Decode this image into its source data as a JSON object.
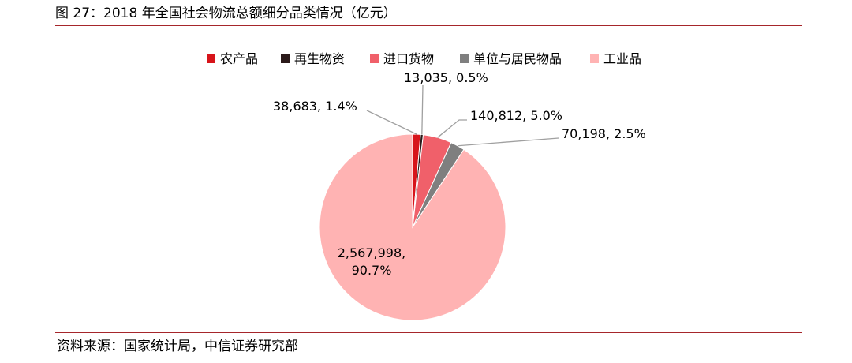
{
  "figure": {
    "title": "图 27：2018 年全国社会物流总额细分品类情况（亿元）",
    "source": "资料来源：国家统计局，中信证券研究部"
  },
  "chart_data": {
    "type": "pie",
    "legend_position": "top",
    "slices": [
      {
        "name": "农产品",
        "value": 38683,
        "percent": "1.4%",
        "label": "38,683, 1.4%",
        "color": "#d7141a"
      },
      {
        "name": "再生物资",
        "value": 13035,
        "percent": "0.5%",
        "label": "13,035, 0.5%",
        "color": "#2b1a1a"
      },
      {
        "name": "进口货物",
        "value": 140812,
        "percent": "5.0%",
        "label": "140,812, 5.0%",
        "color": "#f0606a"
      },
      {
        "name": "单位与居民物品",
        "value": 70198,
        "percent": "2.5%",
        "label": "70,198, 2.5%",
        "color": "#7f7f7f"
      },
      {
        "name": "工业品",
        "value": 2567998,
        "percent": "90.7%",
        "label_lines": [
          "2,567,998,",
          "90.7%"
        ],
        "color": "#ffb3b3"
      }
    ]
  },
  "colors": {
    "rule": "#a6262b",
    "leader": "#a0a0a0"
  }
}
